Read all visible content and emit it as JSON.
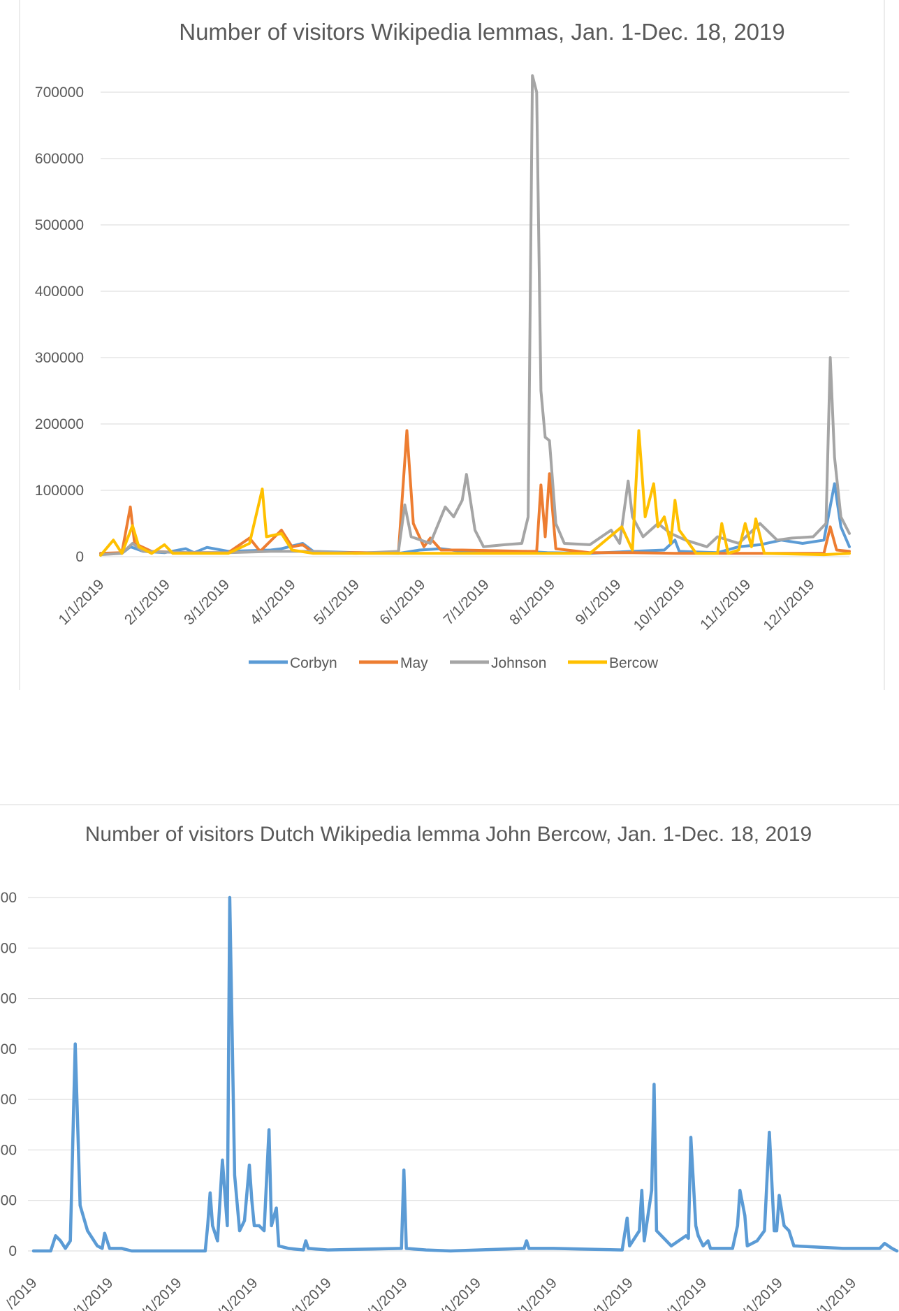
{
  "chart_data": [
    {
      "type": "line",
      "title": "Number of visitors Wikipedia lemmas, Jan. 1-Dec. 18, 2019",
      "xlabel": "",
      "ylabel": "",
      "ylim": [
        0,
        700000
      ],
      "yticks": [
        0,
        100000,
        200000,
        300000,
        400000,
        500000,
        600000,
        700000
      ],
      "ytick_labels": [
        "0",
        "100000",
        "200000",
        "300000",
        "400000",
        "500000",
        "600000",
        "700000"
      ],
      "xtick_labels": [
        "1/1/2019",
        "2/1/2019",
        "3/1/2019",
        "4/1/2019",
        "5/1/2019",
        "6/1/2019",
        "7/1/2019",
        "8/1/2019",
        "9/1/2019",
        "10/1/2019",
        "11/1/2019",
        "12/1/2019"
      ],
      "xtick_days": [
        0,
        31,
        59,
        90,
        120,
        151,
        181,
        212,
        243,
        273,
        304,
        334
      ],
      "x_range_days": [
        0,
        352
      ],
      "legend_position": "bottom",
      "grid": true,
      "series": [
        {
          "name": "Corbyn",
          "color": "#5B9BD5",
          "points": [
            [
              0,
              5000
            ],
            [
              10,
              5000
            ],
            [
              14,
              15000
            ],
            [
              20,
              8000
            ],
            [
              30,
              6000
            ],
            [
              40,
              12000
            ],
            [
              44,
              6000
            ],
            [
              50,
              14000
            ],
            [
              60,
              8000
            ],
            [
              80,
              10000
            ],
            [
              85,
              12000
            ],
            [
              95,
              20000
            ],
            [
              100,
              8000
            ],
            [
              120,
              6000
            ],
            [
              140,
              5000
            ],
            [
              150,
              10000
            ],
            [
              160,
              12000
            ],
            [
              175,
              6000
            ],
            [
              200,
              8000
            ],
            [
              210,
              6000
            ],
            [
              230,
              5000
            ],
            [
              250,
              8000
            ],
            [
              265,
              10000
            ],
            [
              270,
              25000
            ],
            [
              272,
              8000
            ],
            [
              290,
              6000
            ],
            [
              300,
              15000
            ],
            [
              310,
              18000
            ],
            [
              320,
              25000
            ],
            [
              330,
              20000
            ],
            [
              340,
              25000
            ],
            [
              345,
              110000
            ],
            [
              348,
              45000
            ],
            [
              352,
              15000
            ]
          ]
        },
        {
          "name": "May",
          "color": "#ED7D31",
          "points": [
            [
              0,
              5000
            ],
            [
              10,
              6000
            ],
            [
              14,
              75000
            ],
            [
              16,
              20000
            ],
            [
              24,
              8000
            ],
            [
              40,
              6000
            ],
            [
              60,
              6000
            ],
            [
              70,
              28000
            ],
            [
              75,
              8000
            ],
            [
              85,
              40000
            ],
            [
              90,
              15000
            ],
            [
              95,
              18000
            ],
            [
              100,
              6000
            ],
            [
              120,
              6000
            ],
            [
              140,
              6000
            ],
            [
              144,
              190000
            ],
            [
              147,
              50000
            ],
            [
              152,
              15000
            ],
            [
              155,
              28000
            ],
            [
              160,
              10000
            ],
            [
              170,
              10000
            ],
            [
              200,
              8000
            ],
            [
              205,
              8000
            ],
            [
              207,
              108000
            ],
            [
              209,
              30000
            ],
            [
              211,
              125000
            ],
            [
              214,
              12000
            ],
            [
              230,
              6000
            ],
            [
              250,
              6000
            ],
            [
              270,
              5000
            ],
            [
              290,
              5000
            ],
            [
              300,
              5000
            ],
            [
              320,
              5000
            ],
            [
              340,
              5000
            ],
            [
              343,
              45000
            ],
            [
              346,
              10000
            ],
            [
              352,
              8000
            ]
          ]
        },
        {
          "name": "Johnson",
          "color": "#A5A5A5",
          "points": [
            [
              0,
              3000
            ],
            [
              10,
              5000
            ],
            [
              15,
              20000
            ],
            [
              20,
              8000
            ],
            [
              40,
              6000
            ],
            [
              60,
              6000
            ],
            [
              80,
              8000
            ],
            [
              100,
              8000
            ],
            [
              120,
              5000
            ],
            [
              140,
              8000
            ],
            [
              143,
              78000
            ],
            [
              146,
              30000
            ],
            [
              155,
              20000
            ],
            [
              162,
              75000
            ],
            [
              166,
              60000
            ],
            [
              170,
              85000
            ],
            [
              172,
              124000
            ],
            [
              176,
              40000
            ],
            [
              180,
              15000
            ],
            [
              190,
              18000
            ],
            [
              198,
              20000
            ],
            [
              201,
              60000
            ],
            [
              203,
              725000
            ],
            [
              205,
              700000
            ],
            [
              207,
              250000
            ],
            [
              209,
              180000
            ],
            [
              211,
              175000
            ],
            [
              214,
              50000
            ],
            [
              218,
              20000
            ],
            [
              230,
              18000
            ],
            [
              240,
              40000
            ],
            [
              244,
              20000
            ],
            [
              248,
              114000
            ],
            [
              250,
              60000
            ],
            [
              255,
              30000
            ],
            [
              262,
              50000
            ],
            [
              268,
              35000
            ],
            [
              275,
              25000
            ],
            [
              285,
              15000
            ],
            [
              290,
              30000
            ],
            [
              300,
              20000
            ],
            [
              310,
              50000
            ],
            [
              318,
              25000
            ],
            [
              325,
              28000
            ],
            [
              335,
              30000
            ],
            [
              341,
              50000
            ],
            [
              343,
              300000
            ],
            [
              345,
              150000
            ],
            [
              348,
              60000
            ],
            [
              352,
              35000
            ]
          ]
        },
        {
          "name": "Bercow",
          "color": "#FFC000",
          "points": [
            [
              0,
              2000
            ],
            [
              6,
              25000
            ],
            [
              10,
              5000
            ],
            [
              15,
              47000
            ],
            [
              18,
              15000
            ],
            [
              24,
              5000
            ],
            [
              30,
              18000
            ],
            [
              34,
              5000
            ],
            [
              60,
              5000
            ],
            [
              70,
              20000
            ],
            [
              76,
              102000
            ],
            [
              78,
              30000
            ],
            [
              85,
              35000
            ],
            [
              90,
              10000
            ],
            [
              100,
              5000
            ],
            [
              120,
              5000
            ],
            [
              140,
              5000
            ],
            [
              160,
              5000
            ],
            [
              200,
              5000
            ],
            [
              230,
              5000
            ],
            [
              245,
              45000
            ],
            [
              250,
              10000
            ],
            [
              253,
              190000
            ],
            [
              256,
              60000
            ],
            [
              260,
              110000
            ],
            [
              262,
              45000
            ],
            [
              265,
              60000
            ],
            [
              268,
              20000
            ],
            [
              270,
              85000
            ],
            [
              272,
              40000
            ],
            [
              280,
              5000
            ],
            [
              290,
              5000
            ],
            [
              292,
              50000
            ],
            [
              295,
              5000
            ],
            [
              300,
              10000
            ],
            [
              303,
              50000
            ],
            [
              306,
              15000
            ],
            [
              308,
              57000
            ],
            [
              312,
              5000
            ],
            [
              340,
              3000
            ],
            [
              352,
              5000
            ]
          ]
        }
      ]
    },
    {
      "type": "line",
      "title": "Number of visitors Dutch Wikipedia lemma John Bercow, Jan. 1-Dec. 18, 2019",
      "xlabel": "",
      "ylabel": "",
      "ylim": [
        0,
        700
      ],
      "yticks": [
        0,
        100,
        200,
        300,
        400,
        500,
        600,
        700
      ],
      "ytick_labels": [
        "0",
        "00",
        "00",
        "00",
        "00",
        "00",
        "00",
        "00"
      ],
      "xtick_labels": [
        "/2019",
        "/1/2019",
        "/1/2019",
        "/1/2019",
        "/1/2019",
        "/1/2019",
        "/1/2019",
        "/1/2019",
        "/1/2019",
        "/1/2019",
        "/1/2019",
        "/1/2019"
      ],
      "xtick_days": [
        0,
        31,
        59,
        90,
        120,
        151,
        181,
        212,
        243,
        273,
        304,
        334
      ],
      "x_range_days": [
        0,
        352
      ],
      "legend_position": "none",
      "grid": true,
      "series": [
        {
          "name": "Bercow",
          "color": "#5B9BD5",
          "points": [
            [
              0,
              0
            ],
            [
              7,
              0
            ],
            [
              9,
              30
            ],
            [
              11,
              20
            ],
            [
              13,
              5
            ],
            [
              15,
              20
            ],
            [
              17,
              410
            ],
            [
              19,
              90
            ],
            [
              22,
              40
            ],
            [
              26,
              10
            ],
            [
              28,
              5
            ],
            [
              29,
              35
            ],
            [
              31,
              5
            ],
            [
              36,
              5
            ],
            [
              40,
              0
            ],
            [
              70,
              0
            ],
            [
              71,
              50
            ],
            [
              72,
              115
            ],
            [
              73,
              50
            ],
            [
              75,
              20
            ],
            [
              77,
              180
            ],
            [
              79,
              50
            ],
            [
              80,
              700
            ],
            [
              82,
              150
            ],
            [
              84,
              40
            ],
            [
              86,
              60
            ],
            [
              88,
              170
            ],
            [
              89,
              100
            ],
            [
              90,
              50
            ],
            [
              92,
              50
            ],
            [
              94,
              40
            ],
            [
              95,
              140
            ],
            [
              96,
              240
            ],
            [
              97,
              50
            ],
            [
              99,
              85
            ],
            [
              100,
              10
            ],
            [
              104,
              5
            ],
            [
              110,
              2
            ],
            [
              111,
              20
            ],
            [
              112,
              5
            ],
            [
              120,
              2
            ],
            [
              150,
              5
            ],
            [
              151,
              160
            ],
            [
              152,
              5
            ],
            [
              160,
              2
            ],
            [
              170,
              0
            ],
            [
              200,
              5
            ],
            [
              201,
              20
            ],
            [
              202,
              5
            ],
            [
              212,
              5
            ],
            [
              240,
              2
            ],
            [
              242,
              65
            ],
            [
              243,
              10
            ],
            [
              247,
              40
            ],
            [
              248,
              120
            ],
            [
              249,
              20
            ],
            [
              252,
              120
            ],
            [
              253,
              330
            ],
            [
              254,
              40
            ],
            [
              260,
              10
            ],
            [
              266,
              30
            ],
            [
              267,
              25
            ],
            [
              268,
              225
            ],
            [
              270,
              50
            ],
            [
              271,
              30
            ],
            [
              273,
              10
            ],
            [
              275,
              20
            ],
            [
              276,
              5
            ],
            [
              285,
              5
            ],
            [
              287,
              50
            ],
            [
              288,
              120
            ],
            [
              290,
              70
            ],
            [
              291,
              10
            ],
            [
              295,
              20
            ],
            [
              298,
              40
            ],
            [
              300,
              235
            ],
            [
              302,
              40
            ],
            [
              303,
              40
            ],
            [
              304,
              110
            ],
            [
              306,
              50
            ],
            [
              308,
              40
            ],
            [
              310,
              10
            ],
            [
              330,
              5
            ],
            [
              345,
              5
            ],
            [
              347,
              15
            ],
            [
              350,
              5
            ],
            [
              352,
              0
            ]
          ]
        }
      ]
    }
  ]
}
